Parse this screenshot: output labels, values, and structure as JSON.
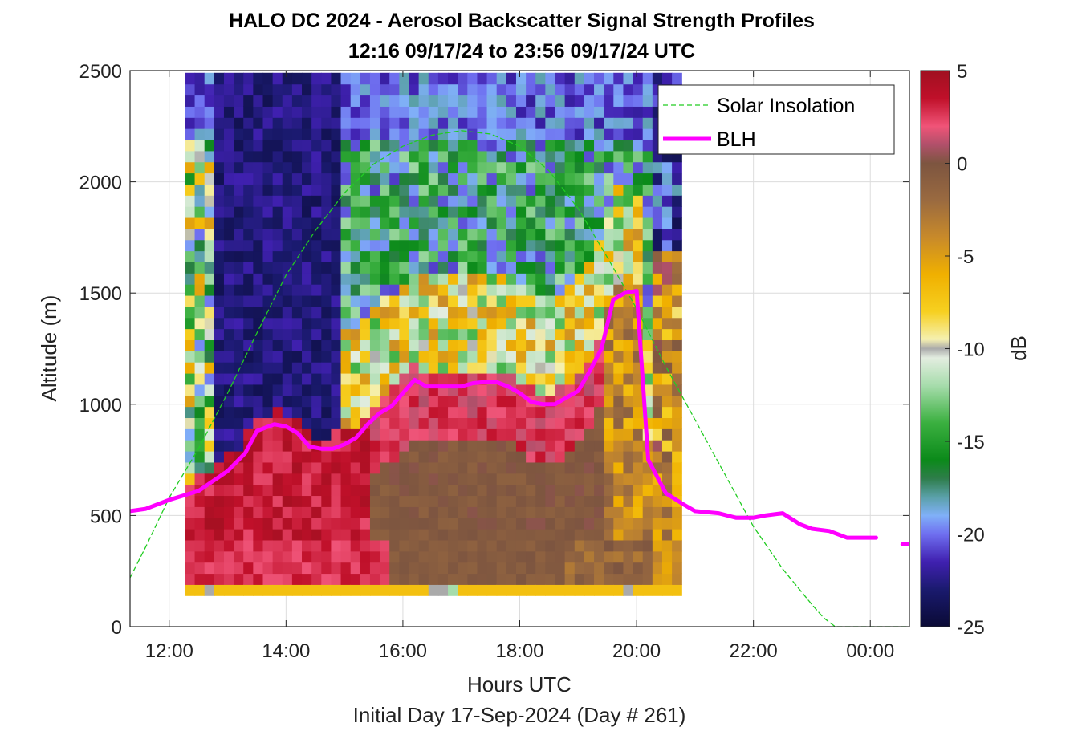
{
  "chart_data": {
    "type": "heatmap",
    "title": "HALO DC 2024 - Aerosol Backscatter Signal Strength Profiles",
    "subtitle": "12:16 09/17/24 to 23:56 09/17/24  UTC",
    "xlabel": "Hours UTC",
    "xlabel2": "Initial Day 17-Sep-2024 (Day # 261)",
    "ylabel": "Altitude (m)",
    "colorbar_label": "dB",
    "xlim": [
      11.33,
      24.67
    ],
    "ylim": [
      0,
      2500
    ],
    "x_tick_values": [
      12,
      14,
      16,
      18,
      20,
      22,
      24
    ],
    "x_tick_labels": [
      "12:00",
      "14:00",
      "16:00",
      "18:00",
      "20:00",
      "22:00",
      "00:00"
    ],
    "y_tick_values": [
      0,
      500,
      1000,
      1500,
      2000,
      2500
    ],
    "y_tick_labels": [
      "0",
      "500",
      "1000",
      "1500",
      "2000",
      "2500"
    ],
    "colorbar_range": [
      -25,
      5
    ],
    "colorbar_tick_values": [
      5,
      0,
      -5,
      -10,
      -15,
      -20,
      -25
    ],
    "colorbar_tick_labels": [
      "5",
      "0",
      "-5",
      "-10",
      "-15",
      "-20",
      "-25"
    ],
    "grid": true,
    "legend_position": "top-right",
    "legend": [
      {
        "label": "Solar Insolation",
        "color": "#22cc22",
        "style": "dashed"
      },
      {
        "label": "BLH",
        "color": "#ff00ff",
        "style": "solid"
      }
    ],
    "colormap": [
      {
        "v": -25,
        "c": "#0a0a35"
      },
      {
        "v": -23,
        "c": "#1a1a6e"
      },
      {
        "v": -21.5,
        "c": "#4020b0"
      },
      {
        "v": -20,
        "c": "#6f6ff0"
      },
      {
        "v": -19,
        "c": "#80b0f8"
      },
      {
        "v": -18,
        "c": "#5aa0a8"
      },
      {
        "v": -17,
        "c": "#2e7d4a"
      },
      {
        "v": -16,
        "c": "#0b8a1a"
      },
      {
        "v": -14,
        "c": "#3bb040"
      },
      {
        "v": -12,
        "c": "#a6dcab"
      },
      {
        "v": -10.5,
        "c": "#e3ede0"
      },
      {
        "v": -10,
        "c": "#aaaaaa"
      },
      {
        "v": -9.5,
        "c": "#f5f0b0"
      },
      {
        "v": -8,
        "c": "#f6d020"
      },
      {
        "v": -6,
        "c": "#f0b000"
      },
      {
        "v": -4,
        "c": "#c88a2a"
      },
      {
        "v": -2,
        "c": "#9a6a40"
      },
      {
        "v": 0,
        "c": "#7d5540"
      },
      {
        "v": 1,
        "c": "#b0506a"
      },
      {
        "v": 2,
        "c": "#f05478"
      },
      {
        "v": 3.5,
        "c": "#c0102a"
      },
      {
        "v": 5,
        "c": "#a01020"
      }
    ],
    "heatmap": {
      "x_start": 12.27,
      "x_step": 0.1667,
      "y_start": 140,
      "y_step": 50,
      "blank_below_first_row": true,
      "columns": 51,
      "rows": 47,
      "bottom_row_db": [
        -7,
        -7,
        -10,
        -7,
        -7,
        -7,
        -7,
        -7,
        -7,
        -7,
        -7,
        -7,
        -7,
        -7,
        -7,
        -7,
        -7,
        -7,
        -7,
        -7,
        -7,
        -7,
        -7,
        -7,
        -7,
        -10,
        -10,
        -12,
        -7,
        -7,
        -7,
        -7,
        -7,
        -7,
        -7,
        -7,
        -7,
        -7,
        -7,
        -7,
        -7,
        -7,
        -7,
        -7,
        -7,
        -10,
        -7,
        -7,
        -7,
        -7,
        -7
      ]
    },
    "series": [
      {
        "name": "BLH",
        "x": [
          11.33,
          11.6,
          12.0,
          12.5,
          13.0,
          13.3,
          13.5,
          13.8,
          14.0,
          14.2,
          14.4,
          14.6,
          14.8,
          15.0,
          15.2,
          15.4,
          15.6,
          15.8,
          16.0,
          16.2,
          16.4,
          16.6,
          16.8,
          17.0,
          17.2,
          17.4,
          17.6,
          17.8,
          18.0,
          18.2,
          18.4,
          18.6,
          18.8,
          19.0,
          19.2,
          19.4,
          19.6,
          19.8,
          20.0,
          20.2,
          20.5,
          20.8,
          21.0,
          21.4,
          21.7,
          22.0,
          22.2,
          22.5,
          22.8,
          23.0,
          23.3,
          23.6,
          24.0,
          24.1
        ],
        "y": [
          520,
          530,
          570,
          610,
          700,
          780,
          880,
          910,
          900,
          870,
          810,
          800,
          800,
          820,
          850,
          910,
          960,
          990,
          1050,
          1110,
          1080,
          1080,
          1080,
          1080,
          1095,
          1100,
          1100,
          1080,
          1050,
          1010,
          1000,
          1000,
          1030,
          1060,
          1150,
          1250,
          1470,
          1500,
          1510,
          750,
          600,
          550,
          520,
          510,
          490,
          490,
          500,
          510,
          460,
          440,
          430,
          400,
          400,
          400
        ]
      },
      {
        "name": "BLH (segment)",
        "x": [
          24.55,
          24.67
        ],
        "y": [
          370,
          370
        ]
      },
      {
        "name": "Solar Insolation",
        "x": [
          11.33,
          11.6,
          12.0,
          12.5,
          13.0,
          13.5,
          14.0,
          14.5,
          15.0,
          15.5,
          16.0,
          16.5,
          17.0,
          17.5,
          18.0,
          18.5,
          19.0,
          19.5,
          20.0,
          20.5,
          21.0,
          21.5,
          22.0,
          22.5,
          23.0,
          23.2,
          23.4,
          24.67
        ],
        "y": [
          220,
          360,
          580,
          800,
          1050,
          1320,
          1580,
          1780,
          1950,
          2080,
          2160,
          2210,
          2230,
          2215,
          2160,
          2050,
          1880,
          1660,
          1430,
          1170,
          930,
          690,
          450,
          260,
          100,
          40,
          0,
          0
        ]
      }
    ]
  }
}
